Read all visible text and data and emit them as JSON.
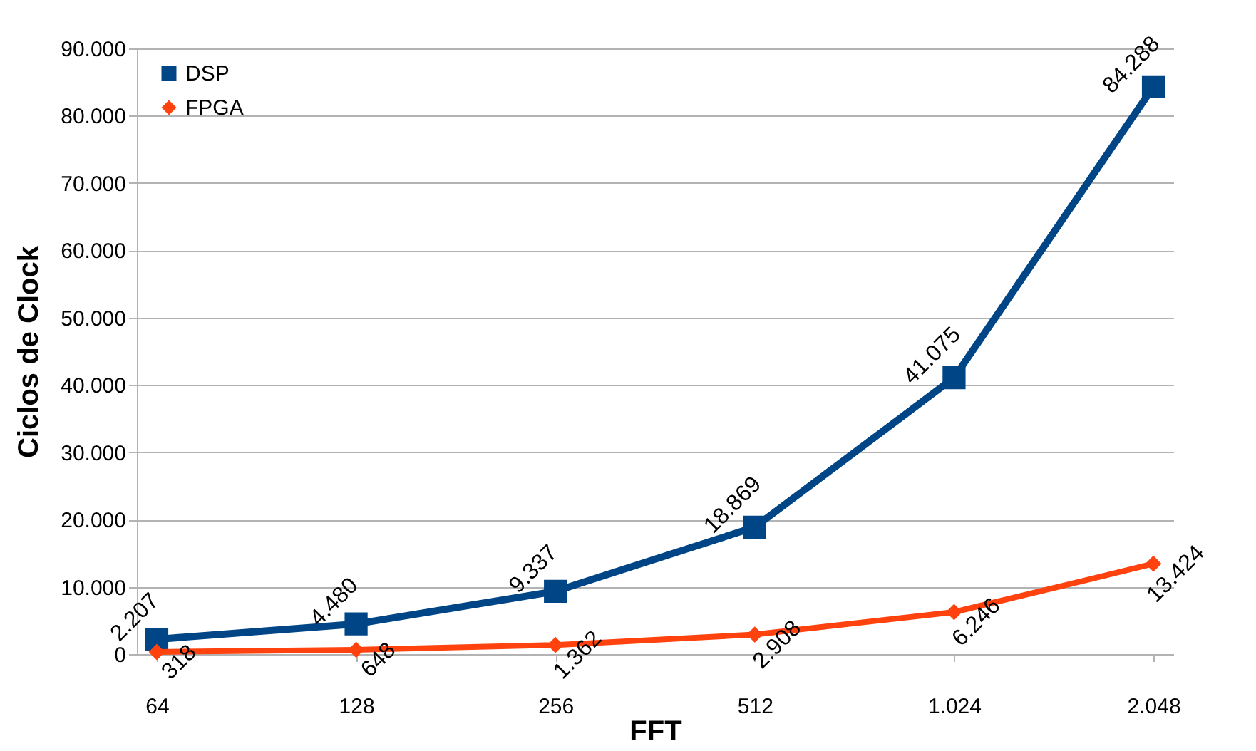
{
  "chart_data": {
    "type": "line",
    "xlabel": "FFT",
    "ylabel": "Ciclos de Clock",
    "categories": [
      "64",
      "128",
      "256",
      "512",
      "1.024",
      "2.048"
    ],
    "series": [
      {
        "name": "DSP",
        "color": "#004586",
        "marker": "square",
        "values": [
          2207,
          4480,
          9337,
          18869,
          41075,
          84288
        ],
        "value_labels": [
          "2.207",
          "4.480",
          "9.337",
          "18.869",
          "41.075",
          "84.288"
        ]
      },
      {
        "name": "FPGA",
        "color": "#ff420e",
        "marker": "diamond",
        "values": [
          318,
          648,
          1362,
          2908,
          6246,
          13424
        ],
        "value_labels": [
          "318",
          "648",
          "1.362",
          "2.908",
          "6.246",
          "13.424"
        ]
      }
    ],
    "ylim": [
      0,
      90000
    ],
    "yticks": [
      0,
      {
        "value": 10000,
        "label": "10.000"
      },
      {
        "value": 20000,
        "label": "20.000"
      },
      {
        "value": 30000,
        "label": "30.000"
      },
      {
        "value": 40000,
        "label": "40.000"
      },
      {
        "value": 50000,
        "label": "50.000"
      },
      {
        "value": 60000,
        "label": "60.000"
      },
      {
        "value": 70000,
        "label": "70.000"
      },
      {
        "value": 80000,
        "label": "80.000"
      },
      {
        "value": 90000,
        "label": "90.000"
      }
    ],
    "grid": "y",
    "legend": "top left",
    "line_style": "solid"
  }
}
